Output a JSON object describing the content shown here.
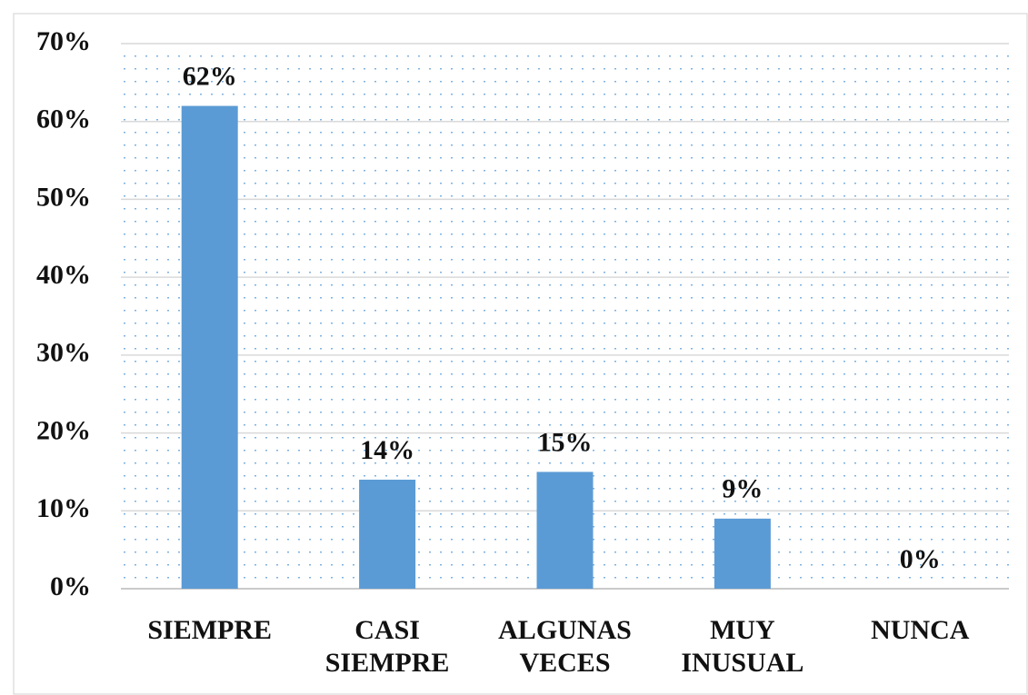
{
  "chart_data": {
    "type": "bar",
    "categories": [
      "SIEMPRE",
      "CASI SIEMPRE",
      "ALGUNAS VECES",
      "MUY INUSUAL",
      "NUNCA"
    ],
    "values": [
      62,
      14,
      15,
      9,
      0
    ],
    "value_labels": [
      "62%",
      "14%",
      "15%",
      "9%",
      "0%"
    ],
    "color": "#5b9bd5",
    "ylim": [
      0,
      70
    ],
    "yticks": [
      {
        "value": 0,
        "label": "0%"
      },
      {
        "value": 10,
        "label": "10%"
      },
      {
        "value": 20,
        "label": "20%"
      },
      {
        "value": 30,
        "label": "30%"
      },
      {
        "value": 40,
        "label": "40%"
      },
      {
        "value": 50,
        "label": "50%"
      },
      {
        "value": 60,
        "label": "60%"
      },
      {
        "value": 70,
        "label": "70%"
      }
    ],
    "grid": true
  }
}
